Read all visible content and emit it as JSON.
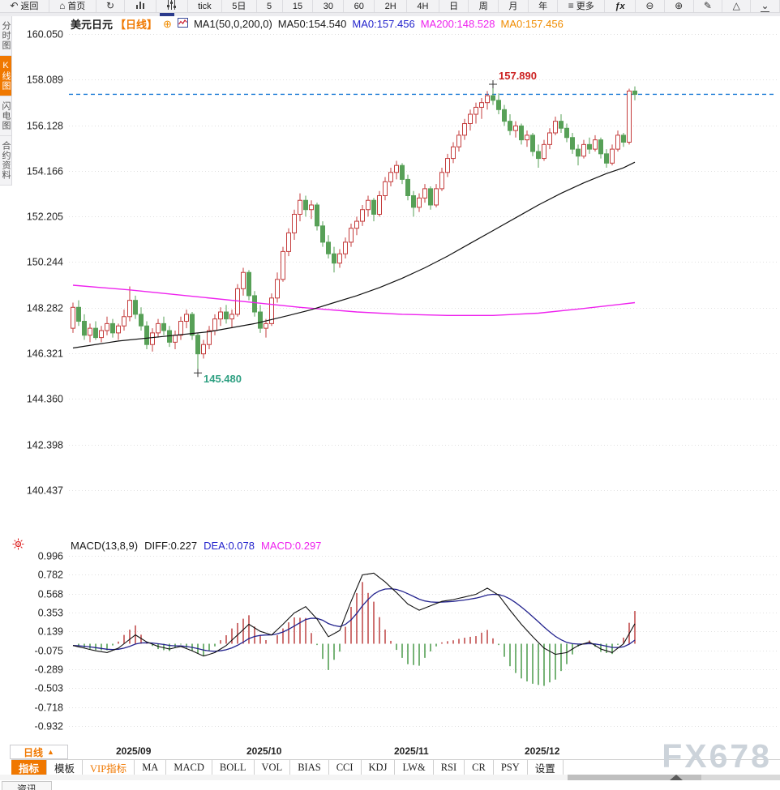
{
  "window": {
    "watermark": "FX678"
  },
  "toolbar": {
    "items": [
      {
        "name": "back",
        "icon": "back-arrow",
        "label": "返回"
      },
      {
        "name": "home",
        "icon": "home",
        "label": "首页"
      },
      {
        "name": "refresh",
        "icon": "refresh",
        "label": ""
      },
      {
        "name": "chart-style",
        "icon": "bar-chart",
        "label": ""
      },
      {
        "name": "indicator-panel",
        "icon": "sliders",
        "label": ""
      },
      {
        "name": "tick",
        "label": "tick"
      },
      {
        "name": "5d",
        "label": "5日"
      },
      {
        "name": "m5",
        "label": "5"
      },
      {
        "name": "m15",
        "label": "15"
      },
      {
        "name": "m30",
        "label": "30"
      },
      {
        "name": "m60",
        "label": "60"
      },
      {
        "name": "h2",
        "label": "2H"
      },
      {
        "name": "h4",
        "label": "4H"
      },
      {
        "name": "day",
        "label": "日"
      },
      {
        "name": "week",
        "label": "周"
      },
      {
        "name": "month",
        "label": "月"
      },
      {
        "name": "year",
        "label": "年"
      },
      {
        "name": "more",
        "icon": "menu",
        "label": "更多"
      },
      {
        "name": "fx",
        "label": "ƒx"
      },
      {
        "name": "zoom-out",
        "icon": "zoom-out",
        "label": ""
      },
      {
        "name": "zoom-in",
        "icon": "zoom-in",
        "label": ""
      },
      {
        "name": "draw",
        "icon": "pencil",
        "label": ""
      },
      {
        "name": "shapes",
        "icon": "triangle",
        "label": ""
      },
      {
        "name": "collapse",
        "icon": "collapse",
        "label": ""
      }
    ]
  },
  "sidebar": {
    "items": [
      {
        "label": "分时图",
        "active": false
      },
      {
        "label": "K线图",
        "active": true
      },
      {
        "label": "闪电图",
        "active": false
      },
      {
        "label": "合约资料",
        "active": false
      }
    ]
  },
  "chart_header": {
    "symbol": "美元日元",
    "period": "【日线】",
    "add_icon": "⊕",
    "ma_settings": "MA1(50,0,200,0)",
    "ma50": "MA50:154.540",
    "ma0_blue": "MA0:157.456",
    "ma200": "MA200:148.528",
    "ma0_orange": "MA0:157.456"
  },
  "macd_header": {
    "settings": "MACD(13,8,9)",
    "diff": "DIFF:0.227",
    "dea": "DEA:0.078",
    "macd": "MACD:0.297"
  },
  "bottom": {
    "period_button": "日线",
    "period_arrow": "▲",
    "news_tab": "资讯",
    "tabs": [
      {
        "label": "指标",
        "active": true
      },
      {
        "label": "模板"
      },
      {
        "label": "VIP指标",
        "vip": true
      },
      {
        "label": "MA"
      },
      {
        "label": "MACD"
      },
      {
        "label": "BOLL"
      },
      {
        "label": "VOL"
      },
      {
        "label": "BIAS"
      },
      {
        "label": "CCI"
      },
      {
        "label": "KDJ"
      },
      {
        "label": "LW&"
      },
      {
        "label": "RSI"
      },
      {
        "label": "CR"
      },
      {
        "label": "PSY"
      },
      {
        "label": "设置"
      }
    ]
  },
  "chart_data": {
    "type": "candlestick",
    "title": "美元日元 日线 (USD/JPY daily with MA50/MA200 and MACD)",
    "price_axis": {
      "ticks": [
        160.05,
        158.089,
        156.128,
        154.166,
        152.205,
        150.244,
        148.282,
        146.321,
        144.36,
        142.398,
        140.437
      ]
    },
    "x_axis": {
      "labels": [
        {
          "label": "2025/09",
          "index": 11
        },
        {
          "label": "2025/10",
          "index": 34
        },
        {
          "label": "2025/11",
          "index": 60
        },
        {
          "label": "2025/12",
          "index": 83
        }
      ]
    },
    "last_price": 157.456,
    "high_annotation": {
      "text": "157.890",
      "index": 74,
      "price": 157.89
    },
    "low_annotation": {
      "text": "145.480",
      "index": 22,
      "price": 145.48
    },
    "candles": [
      [
        147.4,
        148.5,
        147.2,
        148.3
      ],
      [
        148.3,
        148.6,
        147.5,
        147.7
      ],
      [
        147.7,
        148.0,
        146.9,
        147.1
      ],
      [
        147.1,
        147.6,
        146.8,
        147.4
      ],
      [
        147.4,
        147.7,
        146.9,
        147.0
      ],
      [
        147.0,
        147.5,
        146.8,
        147.3
      ],
      [
        147.3,
        147.9,
        147.1,
        147.6
      ],
      [
        147.6,
        147.8,
        147.0,
        147.2
      ],
      [
        147.2,
        147.6,
        146.9,
        147.5
      ],
      [
        147.5,
        148.2,
        147.3,
        147.9
      ],
      [
        147.9,
        149.2,
        147.7,
        148.6
      ],
      [
        148.6,
        148.8,
        147.8,
        148.0
      ],
      [
        148.0,
        148.3,
        147.3,
        147.5
      ],
      [
        147.5,
        147.7,
        146.5,
        146.7
      ],
      [
        146.7,
        147.4,
        146.4,
        147.2
      ],
      [
        147.2,
        147.8,
        147.0,
        147.6
      ],
      [
        147.6,
        147.9,
        147.1,
        147.3
      ],
      [
        147.3,
        147.5,
        146.6,
        146.8
      ],
      [
        146.8,
        147.3,
        146.5,
        147.1
      ],
      [
        147.1,
        147.9,
        146.9,
        147.7
      ],
      [
        147.7,
        148.2,
        147.4,
        148.0
      ],
      [
        148.0,
        148.1,
        146.9,
        147.1
      ],
      [
        147.1,
        147.2,
        145.48,
        146.3
      ],
      [
        146.3,
        146.9,
        146.1,
        146.7
      ],
      [
        146.7,
        147.5,
        146.5,
        147.3
      ],
      [
        147.3,
        148.0,
        147.1,
        147.8
      ],
      [
        147.8,
        148.3,
        147.5,
        148.1
      ],
      [
        148.1,
        148.4,
        147.6,
        147.8
      ],
      [
        147.8,
        148.2,
        147.4,
        148.0
      ],
      [
        148.0,
        149.3,
        147.9,
        149.1
      ],
      [
        149.1,
        150.0,
        148.8,
        149.8
      ],
      [
        149.8,
        149.9,
        148.6,
        148.8
      ],
      [
        148.8,
        149.0,
        147.9,
        148.1
      ],
      [
        148.1,
        148.4,
        147.2,
        147.4
      ],
      [
        147.4,
        147.8,
        147.0,
        147.6
      ],
      [
        147.6,
        148.9,
        147.5,
        148.7
      ],
      [
        148.7,
        149.8,
        148.5,
        149.5
      ],
      [
        149.5,
        150.9,
        149.4,
        150.7
      ],
      [
        150.7,
        151.7,
        150.5,
        151.5
      ],
      [
        151.5,
        152.5,
        151.2,
        152.3
      ],
      [
        152.3,
        153.2,
        152.0,
        152.9
      ],
      [
        152.9,
        153.1,
        152.2,
        152.5
      ],
      [
        152.5,
        152.9,
        152.1,
        152.7
      ],
      [
        152.7,
        152.8,
        151.6,
        151.8
      ],
      [
        151.8,
        152.0,
        150.9,
        151.1
      ],
      [
        151.1,
        151.4,
        150.4,
        150.6
      ],
      [
        150.6,
        150.9,
        149.8,
        150.2
      ],
      [
        150.2,
        150.8,
        150.0,
        150.6
      ],
      [
        150.6,
        151.3,
        150.4,
        151.1
      ],
      [
        151.1,
        151.9,
        150.9,
        151.7
      ],
      [
        151.7,
        152.2,
        151.4,
        152.0
      ],
      [
        152.0,
        152.7,
        151.8,
        152.5
      ],
      [
        152.5,
        153.1,
        152.2,
        152.9
      ],
      [
        152.9,
        153.0,
        152.0,
        152.3
      ],
      [
        152.3,
        153.3,
        152.2,
        153.1
      ],
      [
        153.1,
        153.9,
        152.9,
        153.7
      ],
      [
        153.7,
        154.3,
        153.5,
        154.1
      ],
      [
        154.1,
        154.6,
        153.8,
        154.4
      ],
      [
        154.4,
        154.5,
        153.6,
        153.8
      ],
      [
        153.8,
        154.0,
        152.9,
        153.1
      ],
      [
        153.1,
        153.3,
        152.2,
        152.6
      ],
      [
        152.6,
        153.2,
        152.4,
        153.0
      ],
      [
        153.0,
        153.6,
        152.8,
        153.4
      ],
      [
        153.4,
        153.5,
        152.5,
        152.7
      ],
      [
        152.7,
        153.6,
        152.6,
        153.4
      ],
      [
        153.4,
        154.3,
        153.3,
        154.1
      ],
      [
        154.1,
        154.9,
        153.9,
        154.7
      ],
      [
        154.7,
        155.4,
        154.5,
        155.2
      ],
      [
        155.2,
        155.9,
        155.0,
        155.7
      ],
      [
        155.7,
        156.4,
        155.5,
        156.2
      ],
      [
        156.2,
        156.8,
        155.9,
        156.6
      ],
      [
        156.6,
        157.1,
        156.2,
        156.9
      ],
      [
        156.9,
        157.3,
        156.4,
        157.1
      ],
      [
        157.1,
        157.6,
        156.8,
        157.4
      ],
      [
        157.4,
        157.89,
        157.0,
        157.2
      ],
      [
        157.2,
        157.5,
        156.6,
        156.8
      ],
      [
        156.8,
        157.0,
        156.1,
        156.3
      ],
      [
        156.3,
        156.6,
        155.7,
        155.9
      ],
      [
        155.9,
        156.3,
        155.6,
        156.1
      ],
      [
        156.1,
        156.2,
        155.3,
        155.5
      ],
      [
        155.5,
        155.9,
        155.2,
        155.7
      ],
      [
        155.7,
        155.8,
        154.8,
        155.0
      ],
      [
        155.0,
        155.3,
        154.3,
        154.7
      ],
      [
        154.7,
        155.5,
        154.6,
        155.3
      ],
      [
        155.3,
        156.0,
        155.1,
        155.8
      ],
      [
        155.8,
        156.5,
        155.7,
        156.3
      ],
      [
        156.3,
        156.6,
        155.8,
        156.0
      ],
      [
        156.0,
        156.2,
        155.4,
        155.6
      ],
      [
        155.6,
        155.8,
        154.9,
        155.1
      ],
      [
        155.1,
        155.3,
        154.4,
        154.8
      ],
      [
        154.8,
        155.5,
        154.7,
        155.3
      ],
      [
        155.3,
        155.6,
        154.9,
        155.1
      ],
      [
        155.1,
        155.7,
        155.0,
        155.5
      ],
      [
        155.5,
        155.6,
        154.7,
        154.9
      ],
      [
        154.9,
        155.1,
        154.3,
        154.5
      ],
      [
        154.5,
        155.3,
        154.4,
        155.1
      ],
      [
        155.1,
        155.9,
        155.0,
        155.7
      ],
      [
        155.7,
        155.8,
        155.2,
        155.4
      ],
      [
        155.4,
        157.7,
        155.3,
        157.6
      ],
      [
        157.6,
        157.8,
        157.2,
        157.456
      ]
    ],
    "ma50_points": [
      [
        0,
        146.55
      ],
      [
        8,
        146.85
      ],
      [
        16,
        147.05
      ],
      [
        24,
        147.25
      ],
      [
        32,
        147.6
      ],
      [
        38,
        147.95
      ],
      [
        42,
        148.2
      ],
      [
        46,
        148.5
      ],
      [
        50,
        148.8
      ],
      [
        54,
        149.15
      ],
      [
        58,
        149.55
      ],
      [
        62,
        150.0
      ],
      [
        66,
        150.5
      ],
      [
        70,
        151.05
      ],
      [
        74,
        151.6
      ],
      [
        78,
        152.15
      ],
      [
        82,
        152.7
      ],
      [
        86,
        153.2
      ],
      [
        90,
        153.65
      ],
      [
        94,
        154.05
      ],
      [
        97,
        154.3
      ],
      [
        99,
        154.54
      ]
    ],
    "ma200_points": [
      [
        0,
        149.25
      ],
      [
        10,
        149.05
      ],
      [
        20,
        148.8
      ],
      [
        30,
        148.55
      ],
      [
        40,
        148.3
      ],
      [
        50,
        148.1
      ],
      [
        58,
        148.0
      ],
      [
        66,
        147.95
      ],
      [
        74,
        147.95
      ],
      [
        82,
        148.05
      ],
      [
        90,
        148.25
      ],
      [
        99,
        148.5
      ]
    ],
    "macd": {
      "axis_ticks": [
        0.996,
        0.782,
        0.568,
        0.353,
        0.139,
        -0.075,
        -0.289,
        -0.503,
        -0.718,
        -0.932
      ],
      "diff_points": [
        [
          0,
          -0.02
        ],
        [
          2,
          -0.05
        ],
        [
          4,
          -0.08
        ],
        [
          6,
          -0.1
        ],
        [
          8,
          -0.05
        ],
        [
          10,
          0.05
        ],
        [
          11,
          0.1
        ],
        [
          13,
          0.02
        ],
        [
          15,
          -0.03
        ],
        [
          17,
          -0.06
        ],
        [
          19,
          -0.03
        ],
        [
          21,
          -0.08
        ],
        [
          23,
          -0.14
        ],
        [
          25,
          -0.1
        ],
        [
          27,
          -0.02
        ],
        [
          29,
          0.1
        ],
        [
          31,
          0.22
        ],
        [
          33,
          0.14
        ],
        [
          35,
          0.1
        ],
        [
          37,
          0.22
        ],
        [
          39,
          0.35
        ],
        [
          41,
          0.42
        ],
        [
          43,
          0.28
        ],
        [
          45,
          0.08
        ],
        [
          47,
          0.15
        ],
        [
          49,
          0.48
        ],
        [
          51,
          0.78
        ],
        [
          53,
          0.8
        ],
        [
          55,
          0.7
        ],
        [
          57,
          0.58
        ],
        [
          59,
          0.45
        ],
        [
          61,
          0.38
        ],
        [
          63,
          0.43
        ],
        [
          65,
          0.48
        ],
        [
          67,
          0.5
        ],
        [
          69,
          0.53
        ],
        [
          71,
          0.56
        ],
        [
          73,
          0.63
        ],
        [
          75,
          0.55
        ],
        [
          77,
          0.38
        ],
        [
          79,
          0.22
        ],
        [
          81,
          0.08
        ],
        [
          83,
          -0.05
        ],
        [
          85,
          -0.12
        ],
        [
          87,
          -0.1
        ],
        [
          89,
          -0.02
        ],
        [
          91,
          0.02
        ],
        [
          93,
          -0.06
        ],
        [
          95,
          -0.1
        ],
        [
          97,
          0.0
        ],
        [
          99,
          0.227
        ]
      ],
      "dea_smoothing": 9
    },
    "colors": {
      "up": "#c43c3c",
      "down": "#57a057",
      "ma50": "#111111",
      "ma200": "#ee22ee",
      "last_price_line": "#1c7cd6",
      "diff_line": "#111111",
      "dea_line": "#23238e",
      "hist_up": "#c24f4f",
      "hist_down": "#55a055",
      "high_label": "#cc2222",
      "low_label": "#2fa082",
      "grid": "#e0e0e0",
      "accent": "#f07800"
    }
  }
}
